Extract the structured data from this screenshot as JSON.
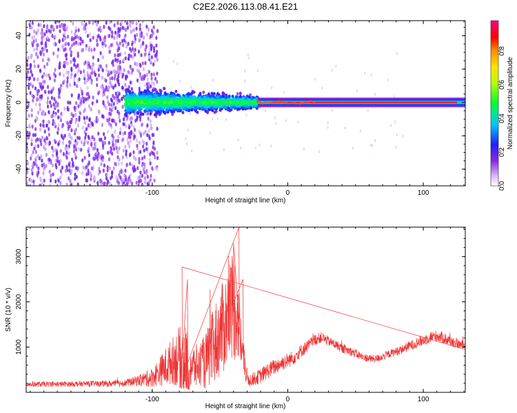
{
  "title": "C2E2.2026.113.08.41.E21",
  "colors": {
    "snr_line": "#ee3333",
    "spectrogram_low": "#8a2be2",
    "spectrogram_high": "#ff0000"
  },
  "chart_data": [
    {
      "type": "heatmap",
      "xlabel": "Height of straight line (km)",
      "ylabel": "Frequency (Hz)",
      "xlim": [
        -193,
        131
      ],
      "ylim": [
        -50,
        49
      ],
      "xticks": [
        -100,
        0,
        100
      ],
      "yticks": [
        -40,
        -20,
        0,
        20,
        40
      ],
      "colorbar": {
        "label": "Normalized spectral amplitude",
        "range": [
          0,
          0.98
        ],
        "ticks": [
          0.0,
          0.2,
          0.4,
          0.6,
          0.8
        ],
        "colormap": "rainbow (white→violet→blue→cyan→green→yellow→orange→red→magenta)"
      },
      "regions": [
        {
          "x": [
            -193,
            -108
          ],
          "freq": [
            -50,
            49
          ],
          "amplitude": [
            0.05,
            0.2
          ],
          "pattern": "broadband noise"
        },
        {
          "x": [
            -120,
            -20
          ],
          "freq": [
            -8,
            8
          ],
          "amplitude": [
            0.2,
            0.45
          ],
          "pattern": "noisy band centered near 0 Hz"
        },
        {
          "x": [
            -20,
            131
          ],
          "freq": [
            -2,
            2
          ],
          "amplitude": [
            0.8,
            0.9
          ],
          "pattern": "narrow line at 0 Hz"
        }
      ]
    },
    {
      "type": "line",
      "xlabel": "Height of straight line (km)",
      "ylabel": "SNR (10 * v/v)",
      "xlim": [
        -193,
        131
      ],
      "ylim": [
        0,
        3650
      ],
      "xticks": [
        -100,
        0,
        100
      ],
      "yticks": [
        1000,
        2000,
        3000
      ],
      "series": [
        {
          "x": [
            -193,
            -170,
            -150,
            -130,
            -120,
            -110,
            -100,
            -95,
            -90,
            -85,
            -80,
            -78,
            -75,
            -72,
            -70,
            -65,
            -60,
            -55,
            -50,
            -45,
            -42,
            -40,
            -38,
            -36,
            -34,
            -32,
            -30,
            -28,
            -25,
            -20,
            -15,
            -10,
            -5,
            0,
            5,
            10,
            15,
            20,
            25,
            30,
            35,
            40,
            45,
            50,
            55,
            60,
            65,
            70,
            75,
            80,
            85,
            90,
            95,
            100,
            105,
            110,
            115,
            120,
            125,
            131
          ],
          "y": [
            180,
            180,
            190,
            190,
            210,
            260,
            330,
            450,
            560,
            700,
            780,
            750,
            680,
            620,
            560,
            580,
            700,
            1000,
            1300,
            1600,
            1900,
            1950,
            1800,
            1500,
            1000,
            600,
            330,
            270,
            300,
            360,
            470,
            560,
            640,
            700,
            790,
            920,
            1030,
            1160,
            1220,
            1130,
            1060,
            970,
            920,
            860,
            780,
            750,
            740,
            790,
            850,
            900,
            960,
            1030,
            1090,
            1150,
            1220,
            1250,
            1200,
            1130,
            1080,
            1020
          ],
          "noise": [
            60,
            60,
            60,
            70,
            80,
            120,
            220,
            300,
            450,
            520,
            700,
            900,
            800,
            600,
            500,
            500,
            650,
            850,
            1000,
            1100,
            1200,
            1300,
            1100,
            900,
            600,
            320,
            200,
            150,
            150,
            170,
            180,
            180,
            170,
            170,
            160,
            150,
            140,
            130,
            120,
            110,
            110,
            100,
            100,
            100,
            90,
            90,
            90,
            90,
            90,
            100,
            100,
            110,
            120,
            130,
            130,
            130,
            130,
            120,
            110,
            100
          ]
        }
      ]
    }
  ]
}
